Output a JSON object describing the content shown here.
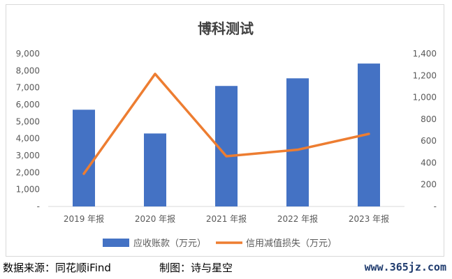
{
  "chart_data": {
    "type": "bar",
    "title": "博科测试",
    "categories": [
      "2019 年报",
      "2020 年报",
      "2021 年报",
      "2022 年报",
      "2023 年报"
    ],
    "series": [
      {
        "name": "应收账款（万元）",
        "type": "bar",
        "axis": "left",
        "color": "#4472c4",
        "values": [
          5700,
          4300,
          7100,
          7550,
          8420
        ]
      },
      {
        "name": "信用减值损失（万元）",
        "type": "line",
        "axis": "right",
        "color": "#ed7d31",
        "values": [
          300,
          1215,
          460,
          520,
          665
        ]
      }
    ],
    "ylim_left": [
      0,
      9000
    ],
    "ylim_right": [
      0,
      1400
    ],
    "yticks_left": [
      "-",
      "1,000",
      "2,000",
      "3,000",
      "4,000",
      "5,000",
      "6,000",
      "7,000",
      "8,000",
      "9,000"
    ],
    "yticks_right": [
      "-",
      "200",
      "400",
      "600",
      "800",
      "1,000",
      "1,200",
      "1,400"
    ],
    "legend_position": "bottom"
  },
  "footer": {
    "source": "数据来源：同花顺iFind",
    "credit": "制图：诗与星空",
    "site": "www.365jz.com"
  }
}
